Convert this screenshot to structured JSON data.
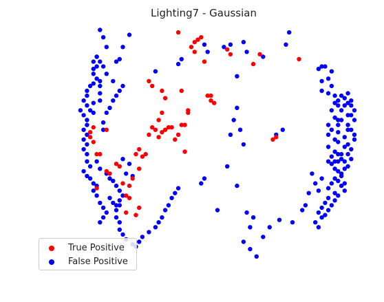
{
  "chart_data": {
    "type": "scatter",
    "title": "Lighting7 - Gaussian",
    "xlabel": "",
    "ylabel": "",
    "axes_visible": false,
    "grid": false,
    "legend_position": "lower-left",
    "xlim": [
      0,
      100
    ],
    "ylim": [
      0,
      100
    ],
    "series": [
      {
        "name": "True Positive",
        "color": "#ff0000",
        "points": [
          [
            42,
            98
          ],
          [
            47,
            94
          ],
          [
            48,
            95
          ],
          [
            49,
            96
          ],
          [
            46,
            92
          ],
          [
            47,
            90
          ],
          [
            50,
            86
          ],
          [
            57,
            91
          ],
          [
            58,
            89
          ],
          [
            65,
            85
          ],
          [
            67,
            89
          ],
          [
            33,
            78
          ],
          [
            34,
            76
          ],
          [
            37,
            74
          ],
          [
            38,
            71
          ],
          [
            37,
            65
          ],
          [
            36,
            62
          ],
          [
            43,
            60
          ],
          [
            44,
            60
          ],
          [
            42,
            56
          ],
          [
            41,
            54
          ],
          [
            43,
            74
          ],
          [
            45,
            65
          ],
          [
            45,
            66
          ],
          [
            51,
            72
          ],
          [
            52,
            70
          ],
          [
            53,
            69
          ],
          [
            52,
            72
          ],
          [
            79,
            87
          ],
          [
            44,
            49
          ],
          [
            29,
            48
          ],
          [
            30,
            50
          ],
          [
            31,
            47
          ],
          [
            32,
            48
          ],
          [
            33,
            56
          ],
          [
            34,
            59
          ],
          [
            35,
            58
          ],
          [
            36,
            55
          ],
          [
            37,
            57
          ],
          [
            38,
            58
          ],
          [
            39,
            59
          ],
          [
            40,
            59
          ],
          [
            30,
            42
          ],
          [
            28,
            38
          ],
          [
            27,
            35
          ],
          [
            26,
            31
          ],
          [
            26,
            24
          ],
          [
            27,
            30
          ],
          [
            29,
            23
          ],
          [
            30,
            26
          ],
          [
            25,
            36
          ],
          [
            24,
            43
          ],
          [
            23,
            44
          ],
          [
            20,
            41
          ],
          [
            21,
            40
          ],
          [
            17,
            34
          ],
          [
            17,
            48
          ],
          [
            18,
            48
          ],
          [
            16,
            53
          ],
          [
            15,
            55
          ],
          [
            15,
            57
          ],
          [
            16,
            59
          ],
          [
            20,
            58
          ],
          [
            71,
            54
          ],
          [
            72,
            55
          ]
        ]
      },
      {
        "name": "False Positive",
        "color": "#0000ff",
        "points": [
          [
            27,
            97
          ],
          [
            25,
            92
          ],
          [
            23,
            86
          ],
          [
            24,
            87
          ],
          [
            35,
            82
          ],
          [
            42,
            85
          ],
          [
            43,
            87
          ],
          [
            50,
            93
          ],
          [
            51,
            90
          ],
          [
            56,
            92
          ],
          [
            58,
            93
          ],
          [
            62,
            94
          ],
          [
            68,
            88
          ],
          [
            75,
            93
          ],
          [
            76,
            98
          ],
          [
            85,
            83
          ],
          [
            87,
            84
          ],
          [
            86,
            84
          ],
          [
            89,
            82
          ],
          [
            88,
            79
          ],
          [
            86,
            78
          ],
          [
            89,
            76
          ],
          [
            86,
            74
          ],
          [
            88,
            73
          ],
          [
            90,
            72
          ],
          [
            91,
            70
          ],
          [
            90,
            69
          ],
          [
            91,
            68
          ],
          [
            89,
            66
          ],
          [
            92,
            66
          ],
          [
            90,
            63
          ],
          [
            91,
            62
          ],
          [
            88,
            60
          ],
          [
            91,
            60
          ],
          [
            89,
            58
          ],
          [
            91,
            57
          ],
          [
            88,
            56
          ],
          [
            90,
            54
          ],
          [
            91,
            53
          ],
          [
            88,
            51
          ],
          [
            90,
            49
          ],
          [
            91,
            48
          ],
          [
            89,
            47
          ],
          [
            92,
            46
          ],
          [
            91,
            45
          ],
          [
            89,
            44
          ],
          [
            90,
            42
          ],
          [
            91,
            41
          ],
          [
            92,
            40
          ],
          [
            90,
            38
          ],
          [
            89,
            36
          ],
          [
            88,
            34
          ],
          [
            90,
            32
          ],
          [
            88,
            30
          ],
          [
            87,
            28
          ],
          [
            86,
            26
          ],
          [
            85,
            24
          ],
          [
            86,
            22
          ],
          [
            84,
            20
          ],
          [
            85,
            18
          ],
          [
            85,
            33
          ],
          [
            88,
            45
          ],
          [
            90,
            45
          ],
          [
            93,
            45
          ],
          [
            92,
            48
          ],
          [
            93,
            51
          ],
          [
            93,
            55
          ],
          [
            94,
            58
          ],
          [
            92,
            62
          ],
          [
            94,
            64
          ],
          [
            93,
            68
          ],
          [
            94,
            69
          ],
          [
            93,
            71
          ],
          [
            92,
            72
          ],
          [
            94,
            73
          ],
          [
            95,
            70
          ],
          [
            95,
            68
          ],
          [
            96,
            66
          ],
          [
            95,
            64
          ],
          [
            96,
            62
          ],
          [
            94,
            60
          ],
          [
            95,
            58
          ],
          [
            96,
            56
          ],
          [
            96,
            54
          ],
          [
            94,
            52
          ],
          [
            95,
            50
          ],
          [
            94,
            48
          ],
          [
            95,
            46
          ],
          [
            94,
            43
          ],
          [
            93,
            42
          ],
          [
            92,
            39
          ],
          [
            91,
            37
          ],
          [
            93,
            36
          ],
          [
            92,
            35
          ],
          [
            93,
            33
          ],
          [
            91,
            31
          ],
          [
            90,
            29
          ],
          [
            89,
            27
          ],
          [
            88,
            25
          ],
          [
            87,
            23
          ],
          [
            17,
            88
          ],
          [
            16,
            86
          ],
          [
            17,
            84
          ],
          [
            16,
            83
          ],
          [
            16,
            81
          ],
          [
            17,
            79
          ],
          [
            16,
            77
          ],
          [
            15,
            76
          ],
          [
            14,
            74
          ],
          [
            14,
            72
          ],
          [
            13,
            70
          ],
          [
            14,
            68
          ],
          [
            12,
            66
          ],
          [
            13,
            64
          ],
          [
            14,
            62
          ],
          [
            14,
            60
          ],
          [
            13,
            58
          ],
          [
            14,
            56
          ],
          [
            13,
            54
          ],
          [
            14,
            52
          ],
          [
            13,
            50
          ],
          [
            14,
            48
          ],
          [
            14,
            45
          ],
          [
            15,
            43
          ],
          [
            13,
            41
          ],
          [
            14,
            39
          ],
          [
            15,
            38
          ],
          [
            16,
            36
          ],
          [
            17,
            35
          ],
          [
            16,
            33
          ],
          [
            17,
            31
          ],
          [
            18,
            28
          ],
          [
            19,
            26
          ],
          [
            20,
            24
          ],
          [
            19,
            22
          ],
          [
            18,
            20
          ],
          [
            17,
            45
          ],
          [
            18,
            42
          ],
          [
            20,
            40
          ],
          [
            21,
            38
          ],
          [
            22,
            37
          ],
          [
            23,
            35
          ],
          [
            24,
            33
          ],
          [
            25,
            31
          ],
          [
            24,
            29
          ],
          [
            24,
            27
          ],
          [
            23,
            25
          ],
          [
            23,
            22
          ],
          [
            24,
            20
          ],
          [
            24,
            17
          ],
          [
            25,
            15
          ],
          [
            26,
            13
          ],
          [
            28,
            11
          ],
          [
            29,
            10
          ],
          [
            30,
            12
          ],
          [
            31,
            14
          ],
          [
            33,
            16
          ],
          [
            35,
            18
          ],
          [
            36,
            20
          ],
          [
            37,
            22
          ],
          [
            38,
            25
          ],
          [
            39,
            27
          ],
          [
            40,
            30
          ],
          [
            41,
            32
          ],
          [
            42,
            34
          ],
          [
            21,
            30
          ],
          [
            22,
            28
          ],
          [
            23,
            27
          ],
          [
            26,
            40
          ],
          [
            28,
            39
          ],
          [
            27,
            44
          ],
          [
            25,
            46
          ],
          [
            19,
            58
          ],
          [
            19,
            61
          ],
          [
            20,
            65
          ],
          [
            21,
            67
          ],
          [
            22,
            70
          ],
          [
            23,
            72
          ],
          [
            24,
            74
          ],
          [
            25,
            76
          ],
          [
            20,
            81
          ],
          [
            22,
            78
          ],
          [
            19,
            84
          ],
          [
            18,
            86
          ],
          [
            17,
            88
          ],
          [
            20,
            92
          ],
          [
            19,
            96
          ],
          [
            18,
            99
          ],
          [
            18,
            70
          ],
          [
            18,
            73
          ],
          [
            18,
            76
          ],
          [
            18,
            78
          ],
          [
            16,
            65
          ],
          [
            15,
            66
          ],
          [
            16,
            69
          ],
          [
            49,
            36
          ],
          [
            50,
            38
          ],
          [
            54,
            25
          ],
          [
            57,
            43
          ],
          [
            58,
            56
          ],
          [
            59,
            62
          ],
          [
            60,
            80
          ],
          [
            63,
            90
          ],
          [
            60,
            67
          ],
          [
            61,
            58
          ],
          [
            62,
            52
          ],
          [
            60,
            35
          ],
          [
            63,
            24
          ],
          [
            65,
            22
          ],
          [
            64,
            18
          ],
          [
            62,
            12
          ],
          [
            64,
            9
          ],
          [
            66,
            6
          ],
          [
            68,
            14
          ],
          [
            70,
            18
          ],
          [
            73,
            21
          ],
          [
            77,
            20
          ],
          [
            80,
            25
          ],
          [
            81,
            27
          ],
          [
            82,
            32
          ],
          [
            84,
            36
          ],
          [
            86,
            38
          ],
          [
            83,
            40
          ],
          [
            72,
            56
          ],
          [
            74,
            58
          ]
        ]
      }
    ]
  },
  "legend": {
    "items": [
      {
        "label": "True Positive",
        "color": "#ff0000"
      },
      {
        "label": "False Positive",
        "color": "#0000ff"
      }
    ]
  }
}
